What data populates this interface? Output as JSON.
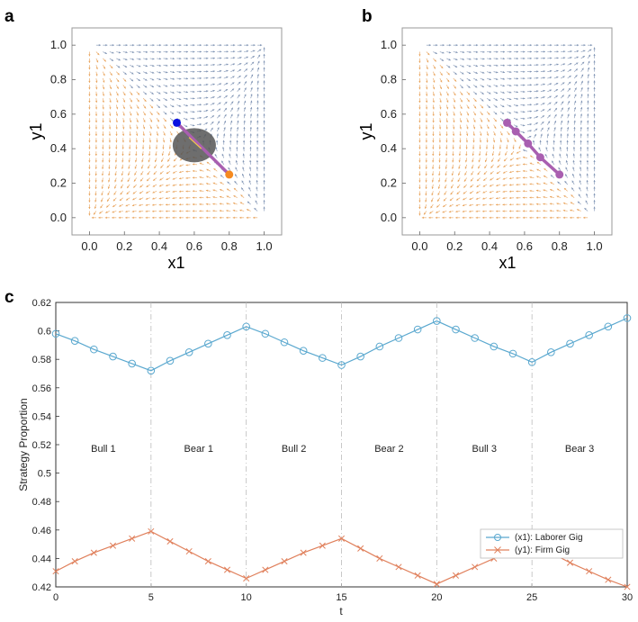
{
  "panel_labels": {
    "a": "a",
    "b": "b",
    "c": "c"
  },
  "chart_data": [
    {
      "id": "a",
      "type": "scatter",
      "title": "",
      "xlabel": "x1",
      "ylabel": "y1",
      "xlim": [
        -0.1,
        1.1
      ],
      "ylim": [
        -0.1,
        1.1
      ],
      "xticks": [
        "0.0",
        "0.2",
        "0.4",
        "0.6",
        "0.8",
        "1.0"
      ],
      "yticks": [
        "0.0",
        "0.2",
        "0.4",
        "0.6",
        "0.8",
        "1.0"
      ],
      "stream_colors": {
        "upper": "#7a8fb0",
        "lower": "#e8a055"
      },
      "saddle": [
        0.6,
        0.43
      ],
      "trajectory": [
        [
          0.5,
          0.55
        ],
        [
          0.8,
          0.25
        ]
      ],
      "start_point": {
        "x": 0.5,
        "y": 0.55,
        "color": "#0b10e0"
      },
      "end_point": {
        "x": 0.8,
        "y": 0.25,
        "color": "#f58a1f"
      },
      "ellipse_center": [
        0.6,
        0.42
      ],
      "line_color": "#a95fb0",
      "ellipse_color": "#555555"
    },
    {
      "id": "b",
      "type": "scatter",
      "title": "",
      "xlabel": "x1",
      "ylabel": "y1",
      "xlim": [
        -0.1,
        1.1
      ],
      "ylim": [
        -0.1,
        1.1
      ],
      "xticks": [
        "0.0",
        "0.2",
        "0.4",
        "0.6",
        "0.8",
        "1.0"
      ],
      "yticks": [
        "0.0",
        "0.2",
        "0.4",
        "0.6",
        "0.8",
        "1.0"
      ],
      "stream_colors": {
        "upper": "#7a8fb0",
        "lower": "#e8a055"
      },
      "saddle": [
        0.6,
        0.43
      ],
      "points": [
        [
          0.5,
          0.55
        ],
        [
          0.55,
          0.5
        ],
        [
          0.62,
          0.43
        ],
        [
          0.69,
          0.35
        ],
        [
          0.8,
          0.25
        ]
      ],
      "point_color": "#a95fb0"
    },
    {
      "id": "c",
      "type": "line",
      "title": "",
      "xlabel": "t",
      "ylabel": "Strategy Proportion",
      "xlim": [
        0,
        30
      ],
      "ylim": [
        0.42,
        0.62
      ],
      "xticks": [
        "0",
        "5",
        "10",
        "15",
        "20",
        "25",
        "30"
      ],
      "yticks": [
        "0.42",
        "0.44",
        "0.46",
        "0.48",
        "0.5",
        "0.52",
        "0.54",
        "0.56",
        "0.58",
        "0.6",
        "0.62"
      ],
      "phase_boundaries": [
        5,
        10,
        15,
        20,
        25
      ],
      "phases": [
        {
          "label": "Bull 1",
          "x": 2.5
        },
        {
          "label": "Bear 1",
          "x": 7.5
        },
        {
          "label": "Bull 2",
          "x": 12.5
        },
        {
          "label": "Bear 2",
          "x": 17.5
        },
        {
          "label": "Bull 3",
          "x": 22.5
        },
        {
          "label": "Bear 3",
          "x": 27.5
        }
      ],
      "phase_label_y": 0.515,
      "x": [
        0,
        1,
        2,
        3,
        4,
        5,
        6,
        7,
        8,
        9,
        10,
        11,
        12,
        13,
        14,
        15,
        16,
        17,
        18,
        19,
        20,
        21,
        22,
        23,
        24,
        25,
        26,
        27,
        28,
        29,
        30
      ],
      "series": [
        {
          "name": "(x1): Laborer Gig",
          "color": "#5aa8cf",
          "marker": "circle",
          "values": [
            0.598,
            0.593,
            0.587,
            0.582,
            0.577,
            0.572,
            0.579,
            0.585,
            0.591,
            0.597,
            0.603,
            0.598,
            0.592,
            0.586,
            0.581,
            0.576,
            0.582,
            0.589,
            0.595,
            0.601,
            0.607,
            0.601,
            0.595,
            0.589,
            0.584,
            0.578,
            0.585,
            0.591,
            0.597,
            0.603,
            0.609
          ]
        },
        {
          "name": "(y1): Firm Gig",
          "color": "#e0805c",
          "marker": "x",
          "values": [
            0.431,
            0.438,
            0.444,
            0.449,
            0.454,
            0.459,
            0.452,
            0.445,
            0.438,
            0.432,
            0.426,
            0.432,
            0.438,
            0.444,
            0.449,
            0.454,
            0.447,
            0.44,
            0.434,
            0.428,
            0.422,
            0.428,
            0.434,
            0.44,
            0.446,
            0.452,
            0.444,
            0.437,
            0.431,
            0.425,
            0.42
          ]
        }
      ],
      "legend": "lower-right"
    }
  ]
}
